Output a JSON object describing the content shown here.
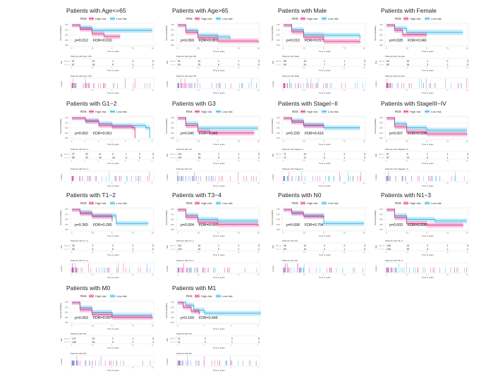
{
  "colors": {
    "high": "#e8308a",
    "low": "#2bb6e8"
  },
  "labels": {
    "risk": "Risk",
    "high": "High risk",
    "low": "Low risk",
    "time": "Time in years",
    "surv": "Survival probability",
    "strata": "Risk",
    "censor": "n.censor"
  },
  "chart_data": [
    {
      "type": "line",
      "title": "Patients with Age<=65",
      "p": "p=0.012",
      "fdr": "FDR=0.016",
      "xmax": 10,
      "xticks": [
        "0",
        "2.5",
        "5",
        "7.5",
        "10"
      ],
      "risk": {
        "high": [
          "67",
          "14",
          "1",
          "0",
          "0"
        ],
        "low": [
          "67",
          "18",
          "5",
          "2",
          "1"
        ]
      },
      "high": [
        [
          0,
          1
        ],
        [
          1,
          0.78
        ],
        [
          2.5,
          0.55
        ],
        [
          4,
          0.42
        ],
        [
          6,
          0.42
        ]
      ],
      "low": [
        [
          0,
          1
        ],
        [
          1,
          0.85
        ],
        [
          2.5,
          0.72
        ],
        [
          10,
          0.72
        ]
      ]
    },
    {
      "type": "line",
      "title": "Patients with Age>65",
      "p": "p=0.069",
      "fdr": "FDR=0.081",
      "xmax": 10,
      "xticks": [
        "0",
        "2.5",
        "5",
        "7.5",
        "10"
      ],
      "risk": {
        "high": [
          "91",
          "10",
          "1",
          "1",
          "0"
        ],
        "low": [
          "90",
          "20",
          "8",
          "0",
          "0"
        ]
      },
      "high": [
        [
          0,
          1
        ],
        [
          1,
          0.62
        ],
        [
          2.5,
          0.35
        ],
        [
          5,
          0.2
        ],
        [
          10,
          0.12
        ]
      ],
      "low": [
        [
          0,
          1
        ],
        [
          1,
          0.72
        ],
        [
          2.5,
          0.48
        ],
        [
          5,
          0.4
        ],
        [
          6.5,
          0.3
        ]
      ]
    },
    {
      "type": "line",
      "title": "Patients with Male",
      "p": "p=0.010",
      "fdr": "FDR=0.017",
      "xmax": 10,
      "xticks": [
        "0",
        "2.5",
        "5",
        "7.5",
        "10"
      ],
      "risk": {
        "high": [
          "98",
          "13",
          "1",
          "1",
          "0"
        ],
        "low": [
          "99",
          "24",
          "7",
          "1",
          "1"
        ]
      },
      "high": [
        [
          0,
          1
        ],
        [
          1,
          0.65
        ],
        [
          2.5,
          0.38
        ],
        [
          5,
          0.18
        ],
        [
          9.5,
          0.12
        ]
      ],
      "low": [
        [
          0,
          1
        ],
        [
          1,
          0.75
        ],
        [
          2.5,
          0.52
        ],
        [
          5,
          0.48
        ],
        [
          9.5,
          0.3
        ]
      ]
    },
    {
      "type": "line",
      "title": "Patients with Female",
      "p": "p=0.028",
      "fdr": "FDR=0.046",
      "xmax": 10,
      "xticks": [
        "0",
        "2.5",
        "5",
        "7.5",
        "10"
      ],
      "risk": {
        "high": [
          "60",
          "10",
          "1",
          "0",
          "0"
        ],
        "low": [
          "60",
          "15",
          "3",
          "1",
          "0"
        ]
      },
      "high": [
        [
          0,
          1
        ],
        [
          1,
          0.72
        ],
        [
          2,
          0.5
        ],
        [
          5,
          0.5
        ]
      ],
      "low": [
        [
          0,
          1
        ],
        [
          1,
          0.82
        ],
        [
          2.5,
          0.62
        ],
        [
          9.5,
          0.62
        ]
      ]
    },
    {
      "type": "line",
      "title": "Patients with G1−2",
      "p": "p=0.062",
      "fdr": "FDR=0.061",
      "xmax": 6,
      "xticks": [
        "0",
        "1",
        "2",
        "3",
        "4",
        "5",
        "6"
      ],
      "risk": {
        "high": [
          "37",
          "20",
          "11",
          "0",
          "1",
          "0",
          "0"
        ],
        "low": [
          "58",
          "43",
          "26",
          "16",
          "8",
          "5",
          "1"
        ]
      },
      "high": [
        [
          0,
          1
        ],
        [
          1,
          0.82
        ],
        [
          2,
          0.62
        ],
        [
          3,
          0.55
        ],
        [
          4.5,
          0.5
        ],
        [
          4.7,
          0
        ]
      ],
      "low": [
        [
          0,
          1
        ],
        [
          1,
          0.85
        ],
        [
          2,
          0.7
        ],
        [
          3,
          0.6
        ],
        [
          5.5,
          0.5
        ],
        [
          5.8,
          0
        ]
      ]
    },
    {
      "type": "line",
      "title": "Patients with G3",
      "p": "p=0.040",
      "fdr": "FDR=0.042",
      "xmax": 10,
      "xticks": [
        "0",
        "2.5",
        "5",
        "7.5",
        "10"
      ],
      "risk": {
        "high": [
          "101",
          "16",
          "2",
          "1",
          "0"
        ],
        "low": [
          "101",
          "18",
          "5",
          "2",
          "1"
        ]
      },
      "high": [
        [
          0,
          1
        ],
        [
          1,
          0.6
        ],
        [
          2.5,
          0.32
        ],
        [
          4,
          0.25
        ],
        [
          9.5,
          0.25
        ]
      ],
      "low": [
        [
          0,
          1
        ],
        [
          1,
          0.7
        ],
        [
          2.5,
          0.48
        ],
        [
          10,
          0.48
        ]
      ]
    },
    {
      "type": "line",
      "title": "Patients with StageI−II",
      "p": "p=0.230",
      "fdr": "FDR=0.416",
      "xmax": 10,
      "xticks": [
        "0",
        "2.5",
        "5",
        "7.5",
        "10"
      ],
      "risk": {
        "high": [
          "71",
          "14",
          "1",
          "0",
          "0"
        ],
        "low": [
          "72",
          "11",
          "5",
          "1",
          "0"
        ]
      },
      "high": [
        [
          0,
          1
        ],
        [
          1,
          0.78
        ],
        [
          2.5,
          0.6
        ],
        [
          5,
          0.55
        ]
      ],
      "low": [
        [
          0,
          1
        ],
        [
          1,
          0.85
        ],
        [
          2.5,
          0.65
        ],
        [
          5,
          0.5
        ],
        [
          9.5,
          0.5
        ]
      ]
    },
    {
      "type": "line",
      "title": "Patients with StageIII−IV",
      "p": "p=0.007",
      "fdr": "FDR=0.008",
      "xmax": 10,
      "xticks": [
        "0",
        "2.5",
        "5",
        "7.5",
        "10"
      ],
      "risk": {
        "high": [
          "87",
          "9",
          "1",
          "1",
          "0"
        ],
        "low": [
          "87",
          "22",
          "5",
          "1",
          "1"
        ]
      },
      "high": [
        [
          0,
          1
        ],
        [
          1,
          0.55
        ],
        [
          2.5,
          0.3
        ],
        [
          5,
          0.2
        ],
        [
          10,
          0.15
        ]
      ],
      "low": [
        [
          0,
          1
        ],
        [
          1,
          0.7
        ],
        [
          2.5,
          0.5
        ],
        [
          5,
          0.38
        ],
        [
          10,
          0.38
        ]
      ]
    },
    {
      "type": "line",
      "title": "Patients with T1−2",
      "p": "p=0.365",
      "fdr": "FDR=0.285",
      "xmax": 10,
      "xticks": [
        "0",
        "2.5",
        "5",
        "7.5",
        "10"
      ],
      "risk": {
        "high": [
          "29",
          "3",
          "2",
          "0",
          "0"
        ],
        "low": [
          "39",
          "6",
          "5",
          "1",
          "0"
        ]
      },
      "high": [
        [
          0,
          1
        ],
        [
          1,
          0.78
        ],
        [
          2.5,
          0.65
        ],
        [
          5,
          0.4
        ]
      ],
      "low": [
        [
          0,
          1
        ],
        [
          1,
          0.85
        ],
        [
          2.5,
          0.68
        ],
        [
          5.5,
          0.3
        ],
        [
          9.5,
          0.3
        ]
      ]
    },
    {
      "type": "line",
      "title": "Patients with T3−4",
      "p": "p=0.004",
      "fdr": "FDR=0.005",
      "xmax": 10,
      "xticks": [
        "0",
        "2.5",
        "5",
        "7.5",
        "10"
      ],
      "risk": {
        "high": [
          "110",
          "16",
          "1",
          "1",
          "0"
        ],
        "low": [
          "120",
          "20",
          "4",
          "1",
          "1"
        ]
      },
      "high": [
        [
          0,
          1
        ],
        [
          1,
          0.6
        ],
        [
          2.5,
          0.35
        ],
        [
          5,
          0.25
        ],
        [
          10,
          0.15
        ]
      ],
      "low": [
        [
          0,
          1
        ],
        [
          1,
          0.7
        ],
        [
          2.5,
          0.5
        ],
        [
          5,
          0.42
        ],
        [
          10,
          0.42
        ]
      ]
    },
    {
      "type": "line",
      "title": "Patients with N0",
      "p": "p=0.698",
      "fdr": "FDR=0.794",
      "xmax": 10,
      "xticks": [
        "0",
        "2.5",
        "5",
        "7.5",
        "10"
      ],
      "risk": {
        "high": [
          "40",
          "10",
          "0",
          "0",
          "0"
        ],
        "low": [
          "50",
          "10",
          "4",
          "1",
          "0"
        ]
      },
      "high": [
        [
          0,
          1
        ],
        [
          1,
          0.8
        ],
        [
          2.5,
          0.65
        ],
        [
          5,
          0.6
        ]
      ],
      "low": [
        [
          0,
          1
        ],
        [
          1,
          0.82
        ],
        [
          2.5,
          0.68
        ],
        [
          5,
          0.3
        ],
        [
          10,
          0.3
        ]
      ]
    },
    {
      "type": "line",
      "title": "Patients with N1−3",
      "p": "p=0.003",
      "fdr": "FDR=0.008",
      "xmax": 10,
      "xticks": [
        "0",
        "2.5",
        "5",
        "7.5",
        "10"
      ],
      "risk": {
        "high": [
          "108",
          "14",
          "2",
          "1",
          "0"
        ],
        "low": [
          "108",
          "20",
          "6",
          "1",
          "1"
        ]
      },
      "high": [
        [
          0,
          1
        ],
        [
          1,
          0.58
        ],
        [
          2.5,
          0.3
        ],
        [
          5,
          0.22
        ],
        [
          9.5,
          0.18
        ]
      ],
      "low": [
        [
          0,
          1
        ],
        [
          1,
          0.68
        ],
        [
          2.5,
          0.5
        ],
        [
          6,
          0.42
        ],
        [
          10,
          0.42
        ]
      ]
    },
    {
      "type": "line",
      "title": "Patients with M0",
      "p": "p=0.003",
      "fdr": "FDR=0.007",
      "xmax": 10,
      "xticks": [
        "0",
        "2.5",
        "5",
        "7.5",
        "10"
      ],
      "risk": {
        "high": [
          "147",
          "24",
          "2",
          "1",
          "0"
        ],
        "low": [
          "148",
          "34",
          "9",
          "2",
          "1"
        ]
      },
      "high": [
        [
          0,
          1
        ],
        [
          1,
          0.62
        ],
        [
          2.5,
          0.38
        ],
        [
          5,
          0.25
        ],
        [
          10,
          0.2
        ]
      ],
      "low": [
        [
          0,
          1
        ],
        [
          1,
          0.72
        ],
        [
          2.5,
          0.5
        ],
        [
          5,
          0.35
        ],
        [
          10,
          0.35
        ]
      ]
    },
    {
      "type": "line",
      "title": "Patients with M1",
      "p": "p=0.169",
      "fdr": "FDR=0.449",
      "xmax": 3,
      "xticks": [
        "0",
        "1",
        "2",
        "3"
      ],
      "risk": {
        "high": [
          "11",
          "0",
          "0",
          "0"
        ],
        "low": [
          "11",
          "4",
          "1",
          "1"
        ]
      },
      "high": [
        [
          0,
          1
        ],
        [
          0.2,
          0.75
        ],
        [
          0.5,
          0.55
        ],
        [
          0.8,
          0.4
        ]
      ],
      "low": [
        [
          0,
          1
        ],
        [
          0.3,
          0.85
        ],
        [
          0.6,
          0.6
        ],
        [
          1,
          0.45
        ],
        [
          3.1,
          0.45
        ]
      ]
    }
  ]
}
